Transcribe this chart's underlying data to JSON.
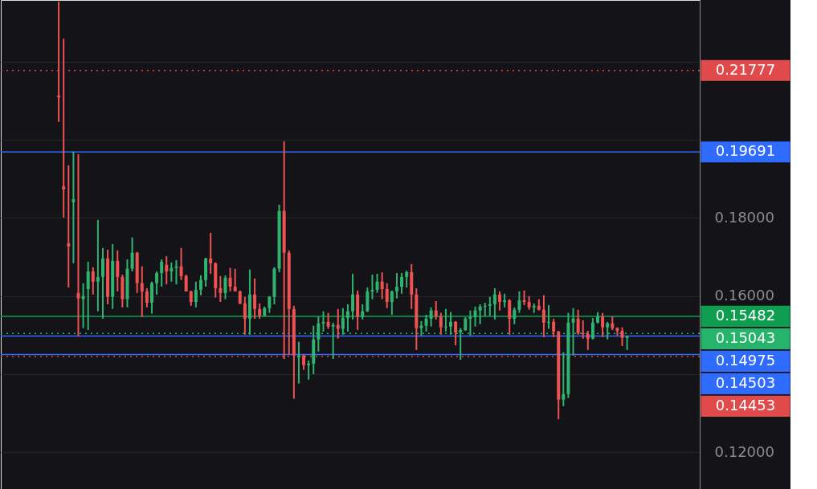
{
  "chart_data": {
    "type": "candlestick",
    "categories": [
      null,
      null,
      null,
      null,
      null,
      null,
      null,
      null,
      null,
      null,
      null,
      null,
      null,
      null,
      null,
      null,
      null,
      null,
      null,
      null,
      null,
      null,
      null,
      null,
      null,
      null,
      null,
      null,
      null,
      null,
      null,
      null,
      null,
      null,
      null,
      null,
      null,
      null,
      null,
      null,
      null,
      null,
      null,
      null,
      null,
      null,
      null,
      null,
      null,
      null,
      null,
      null,
      null,
      null,
      null,
      null,
      null,
      null,
      null,
      null,
      null,
      null,
      null,
      null,
      null,
      null,
      null,
      null,
      null,
      null,
      null,
      null,
      null,
      null,
      null,
      null,
      null,
      null,
      null,
      null,
      null,
      null,
      null,
      null,
      null,
      null,
      null,
      null,
      null,
      null,
      null,
      null,
      null,
      null,
      null,
      null,
      null,
      null,
      null,
      null,
      null,
      null,
      null,
      null,
      null,
      null,
      null,
      null,
      null,
      null,
      null,
      null,
      null,
      null,
      null,
      null,
      null,
      null,
      null,
      null,
      null,
      null,
      null,
      null,
      null,
      null,
      null,
      null,
      null,
      null,
      null,
      null,
      null,
      null,
      null,
      null,
      null,
      null,
      null,
      null,
      null,
      null
    ],
    "ohlc": [
      null,
      null,
      null,
      null,
      null,
      null,
      null,
      null,
      null,
      null,
      null,
      [
        0.2113,
        0.2354,
        0.2046,
        0.2109
      ],
      [
        0.1881,
        0.2259,
        0.1801,
        0.1873
      ],
      [
        0.1735,
        0.1935,
        0.1622,
        0.1727
      ],
      [
        0.184,
        0.197,
        0.1684,
        0.1848
      ],
      [
        0.1608,
        0.1963,
        0.1497,
        0.1594
      ],
      [
        0.1592,
        0.1633,
        0.1518,
        0.16
      ],
      [
        0.1618,
        0.1688,
        0.1513,
        0.1663
      ],
      [
        0.1663,
        0.1674,
        0.1604,
        0.1637
      ],
      [
        0.1637,
        0.1795,
        0.1561,
        0.1649
      ],
      [
        0.1649,
        0.1723,
        0.1542,
        0.1696
      ],
      [
        0.1696,
        0.1719,
        0.1579,
        0.1598
      ],
      [
        0.1598,
        0.1733,
        0.1567,
        0.169
      ],
      [
        0.169,
        0.1717,
        0.1612,
        0.1649
      ],
      [
        0.1649,
        0.1655,
        0.1571,
        0.1592
      ],
      [
        0.1592,
        0.1694,
        0.1571,
        0.167
      ],
      [
        0.167,
        0.175,
        0.1663,
        0.1711
      ],
      [
        0.1711,
        0.1713,
        0.1608,
        0.1633
      ],
      [
        0.1633,
        0.1676,
        0.1546,
        0.1612
      ],
      [
        0.1612,
        0.162,
        0.1571,
        0.1583
      ],
      [
        0.1583,
        0.1637,
        0.1555,
        0.1633
      ],
      [
        0.1633,
        0.1663,
        0.1604,
        0.1659
      ],
      [
        0.1659,
        0.1694,
        0.1624,
        0.1688
      ],
      [
        0.168,
        0.1702,
        0.163,
        0.1663
      ],
      [
        0.1663,
        0.1686,
        0.1637,
        0.1672
      ],
      [
        0.1672,
        0.1692,
        0.163,
        0.1676
      ],
      [
        0.1676,
        0.1723,
        0.1641,
        0.1651
      ],
      [
        0.1651,
        0.1655,
        0.1612,
        0.1612
      ],
      [
        0.1612,
        0.1614,
        0.1575,
        0.1585
      ],
      [
        0.1585,
        0.1637,
        0.1571,
        0.1616
      ],
      [
        0.1616,
        0.1653,
        0.1602,
        0.1641
      ],
      [
        0.1641,
        0.1698,
        0.1624,
        0.1696
      ],
      [
        0.1696,
        0.1762,
        0.1657,
        0.1684
      ],
      [
        0.1684,
        0.1686,
        0.1596,
        0.162
      ],
      [
        0.162,
        0.1651,
        0.1585,
        0.1608
      ],
      [
        0.1608,
        0.1653,
        0.1592,
        0.1647
      ],
      [
        0.1647,
        0.1672,
        0.1612,
        0.1624
      ],
      [
        0.1624,
        0.167,
        0.1612,
        0.1612
      ],
      [
        0.1612,
        0.1614,
        0.1579,
        0.1581
      ],
      [
        0.1581,
        0.1598,
        0.1501,
        0.1542
      ],
      [
        0.1542,
        0.1668,
        0.1501,
        0.1604
      ],
      [
        0.1604,
        0.1645,
        0.1542,
        0.1567
      ],
      [
        0.1567,
        0.1581,
        0.1542,
        0.155
      ],
      [
        0.155,
        0.1573,
        0.1548,
        0.1569
      ],
      [
        0.1569,
        0.16,
        0.1557,
        0.1598
      ],
      [
        0.1598,
        0.1674,
        0.1579,
        0.167
      ],
      [
        0.167,
        0.1834,
        0.1661,
        0.1818
      ],
      [
        0.1818,
        0.1996,
        0.1439,
        0.1711
      ],
      [
        0.1711,
        0.1717,
        0.145,
        0.1567
      ],
      [
        0.1567,
        0.1575,
        0.1337,
        0.1448
      ],
      [
        0.1443,
        0.1483,
        0.1376,
        0.1448
      ],
      [
        0.1448,
        0.145,
        0.1411,
        0.1423
      ],
      [
        0.1423,
        0.1435,
        0.1386,
        0.1427
      ],
      [
        0.1427,
        0.1524,
        0.14,
        0.1489
      ],
      [
        0.1489,
        0.1548,
        0.1458,
        0.153
      ],
      [
        0.153,
        0.1561,
        0.1509,
        0.1534
      ],
      [
        0.1534,
        0.1557,
        0.1516,
        0.1522
      ],
      [
        0.1522,
        0.1532,
        0.1439,
        0.1526
      ],
      [
        0.1526,
        0.1567,
        0.1491,
        0.1516
      ],
      [
        0.1516,
        0.1569,
        0.1501,
        0.1544
      ],
      [
        0.1544,
        0.1579,
        0.1509,
        0.1561
      ],
      [
        0.1561,
        0.1657,
        0.154,
        0.1604
      ],
      [
        0.1604,
        0.1614,
        0.1513,
        0.1546
      ],
      [
        0.1546,
        0.1579,
        0.154,
        0.1561
      ],
      [
        0.1561,
        0.1622,
        0.1559,
        0.1612
      ],
      [
        0.1612,
        0.1655,
        0.1592,
        0.1616
      ],
      [
        0.1616,
        0.1657,
        0.1608,
        0.1637
      ],
      [
        0.1637,
        0.1661,
        0.1592,
        0.1618
      ],
      [
        0.1618,
        0.1633,
        0.1569,
        0.1585
      ],
      [
        0.1585,
        0.1614,
        0.1552,
        0.1612
      ],
      [
        0.1612,
        0.1659,
        0.1594,
        0.1624
      ],
      [
        0.1624,
        0.1659,
        0.1606,
        0.1649
      ],
      [
        0.1649,
        0.1665,
        0.1622,
        0.1661
      ],
      [
        0.1661,
        0.1682,
        0.1567,
        0.1604
      ],
      [
        0.1604,
        0.162,
        0.1462,
        0.1518
      ],
      [
        0.1518,
        0.1536,
        0.1499,
        0.1524
      ],
      [
        0.1524,
        0.1552,
        0.1509,
        0.1542
      ],
      [
        0.1542,
        0.1571,
        0.1522,
        0.1563
      ],
      [
        0.1563,
        0.1587,
        0.154,
        0.1548
      ],
      [
        0.1548,
        0.1557,
        0.1501,
        0.152
      ],
      [
        0.152,
        0.1567,
        0.1509,
        0.1522
      ],
      [
        0.1522,
        0.1559,
        0.1501,
        0.1534
      ],
      [
        0.1534,
        0.1536,
        0.1474,
        0.1507
      ],
      [
        0.1507,
        0.1518,
        0.1437,
        0.1513
      ],
      [
        0.1513,
        0.1546,
        0.1511,
        0.1542
      ],
      [
        0.1542,
        0.1563,
        0.1499,
        0.1546
      ],
      [
        0.1546,
        0.1573,
        0.1522,
        0.1563
      ],
      [
        0.1563,
        0.1579,
        0.1528,
        0.1573
      ],
      [
        0.1573,
        0.1583,
        0.1548,
        0.1575
      ],
      [
        0.1575,
        0.1598,
        0.155,
        0.1579
      ],
      [
        0.1579,
        0.162,
        0.154,
        0.1604
      ],
      [
        0.1604,
        0.1612,
        0.1563,
        0.1585
      ],
      [
        0.1585,
        0.1606,
        0.1571,
        0.1589
      ],
      [
        0.1589,
        0.1592,
        0.1501,
        0.1542
      ],
      [
        0.1542,
        0.1571,
        0.1528,
        0.1565
      ],
      [
        0.1565,
        0.1612,
        0.1557,
        0.1589
      ],
      [
        0.1589,
        0.1614,
        0.1577,
        0.1585
      ],
      [
        0.1585,
        0.16,
        0.1565,
        0.1571
      ],
      [
        0.1571,
        0.1581,
        0.1557,
        0.1575
      ],
      [
        0.1575,
        0.1592,
        0.1563,
        0.1565
      ],
      [
        0.1565,
        0.1602,
        0.1495,
        0.1532
      ],
      [
        0.1532,
        0.1577,
        0.1516,
        0.1534
      ],
      [
        0.1534,
        0.1542,
        0.1495,
        0.1509
      ],
      [
        0.1509,
        0.1511,
        0.1285,
        0.1335
      ],
      [
        0.1335,
        0.1456,
        0.1318,
        0.1349
      ],
      [
        0.1349,
        0.1557,
        0.1339,
        0.1532
      ],
      [
        0.1532,
        0.1569,
        0.1448,
        0.1542
      ],
      [
        0.1542,
        0.1565,
        0.1501,
        0.1505
      ],
      [
        0.1505,
        0.1538,
        0.1491,
        0.1503
      ],
      [
        0.1503,
        0.1511,
        0.1462,
        0.1491
      ],
      [
        0.1491,
        0.1544,
        0.1489,
        0.1532
      ],
      [
        0.1532,
        0.1559,
        0.153,
        0.1548
      ],
      [
        0.1548,
        0.1557,
        0.1495,
        0.152
      ],
      [
        0.152,
        0.1534,
        0.1489,
        0.153
      ],
      [
        0.153,
        0.1548,
        0.1513,
        0.1518
      ],
      [
        0.1518,
        0.152,
        0.1499,
        0.1511
      ],
      [
        0.1511,
        0.152,
        0.1472,
        0.1493
      ],
      [
        0.1493,
        0.1499,
        0.1462,
        0.1497
      ],
      null,
      null,
      null,
      null,
      null,
      null,
      null,
      null,
      null,
      null,
      null,
      null,
      null,
      null
    ],
    "colors": [
      null,
      null,
      null,
      null,
      null,
      null,
      null,
      null,
      null,
      null,
      null,
      "#ee5253",
      "#ee5253",
      "#ee5253",
      "#2fb36e",
      "#ee5253",
      "#2fb36e",
      "#2fb36e",
      "#ee5253",
      "#2fb36e",
      "#2fb36e",
      "#ee5253",
      "#2fb36e",
      "#ee5253",
      "#ee5253",
      "#2fb36e",
      "#2fb36e",
      "#ee5253",
      "#ee5253",
      "#ee5253",
      "#2fb36e",
      "#2fb36e",
      "#2fb36e",
      "#ee5253",
      "#2fb36e",
      "#2fb36e",
      "#ee5253",
      "#ee5253",
      "#ee5253",
      "#2fb36e",
      "#2fb36e",
      "#2fb36e",
      "#ee5253",
      "#ee5253",
      "#ee5253",
      "#2fb36e",
      "#ee5253",
      "#ee5253",
      "#ee5253",
      "#ee5253",
      "#2fb36e",
      "#ee5253",
      "#ee5253",
      "#2fb36e",
      "#2fb36e",
      "#2fb36e",
      "#2fb36e",
      "#ee5253",
      "#ee5253",
      "#ee5253",
      "#2fb36e",
      "#ee5253",
      "#2fb36e",
      "#2fb36e",
      "#2fb36e",
      "#2fb36e",
      "#ee5253",
      "#2fb36e",
      "#ee5253",
      "#2fb36e",
      "#2fb36e",
      "#2fb36e",
      "#ee5253",
      "#2fb36e",
      "#2fb36e",
      "#2fb36e",
      "#2fb36e",
      "#ee5253",
      "#ee5253",
      "#2fb36e",
      "#2fb36e",
      "#2fb36e",
      "#2fb36e",
      "#ee5253",
      "#ee5253",
      "#2fb36e",
      "#2fb36e",
      "#2fb36e",
      "#ee5253",
      "#ee5253",
      "#2fb36e",
      "#2fb36e",
      "#ee5253",
      "#2fb36e",
      "#2fb36e",
      "#2fb36e",
      "#2fb36e",
      "#2fb36e",
      "#2fb36e",
      "#2fb36e",
      "#2fb36e",
      "#ee5253",
      "#2fb36e",
      "#ee5253",
      "#2fb36e",
      "#2fb36e",
      "#ee5253",
      "#ee5253",
      "#2fb36e",
      "#ee5253",
      "#ee5253",
      "#2fb36e",
      "#ee5253",
      "#ee5253",
      "#2fb36e",
      "#2fb36e",
      "#2fb36e",
      "#ee5253",
      "#ee5253",
      "#ee5253",
      "#2fb36e",
      "#2fb36e",
      "#ee5253",
      "#2fb36e",
      "#ee5253",
      "#ee5253",
      "#ee5253",
      "#2fb36e",
      null,
      null,
      null,
      null,
      null,
      null,
      null,
      null,
      null,
      null,
      null,
      null,
      null,
      null
    ],
    "ylim": [
      0.1106,
      0.2358
    ],
    "yticks": [
      {
        "value": 0.12,
        "label": "0.12000"
      },
      {
        "value": 0.14,
        "label": null
      },
      {
        "value": 0.16,
        "label": "0.16000"
      },
      {
        "value": 0.18,
        "label": "0.18000"
      },
      {
        "value": 0.2,
        "label": null
      },
      {
        "value": 0.22,
        "label": null
      }
    ],
    "grid": "y",
    "tick_labels": "y",
    "ref_lines": [
      {
        "axis": "y",
        "value": 0.21777,
        "label": "0.21777",
        "color": "#e04a4a",
        "line_style": "dotted"
      },
      {
        "axis": "y",
        "value": 0.19691,
        "label": "0.19691",
        "color": "#2f6bff",
        "line_style": "solid"
      },
      {
        "axis": "y",
        "value": 0.15482,
        "label": "0.15482",
        "color": "#0f9d50",
        "line_style": "solid"
      },
      {
        "axis": "y",
        "value": 0.15043,
        "label": "0.15043",
        "color": "#26b36b",
        "line_style": "dotted"
      },
      {
        "axis": "y",
        "value": 0.14975,
        "label": "0.14975",
        "color": "#2f6bff",
        "line_style": "solid"
      },
      {
        "axis": "y",
        "value": 0.14503,
        "label": "0.14503",
        "color": "#2f6bff",
        "line_style": "solid"
      },
      {
        "axis": "y",
        "value": 0.14453,
        "label": "0.14453",
        "color": "#e04a4a",
        "line_style": "dotted"
      }
    ]
  }
}
